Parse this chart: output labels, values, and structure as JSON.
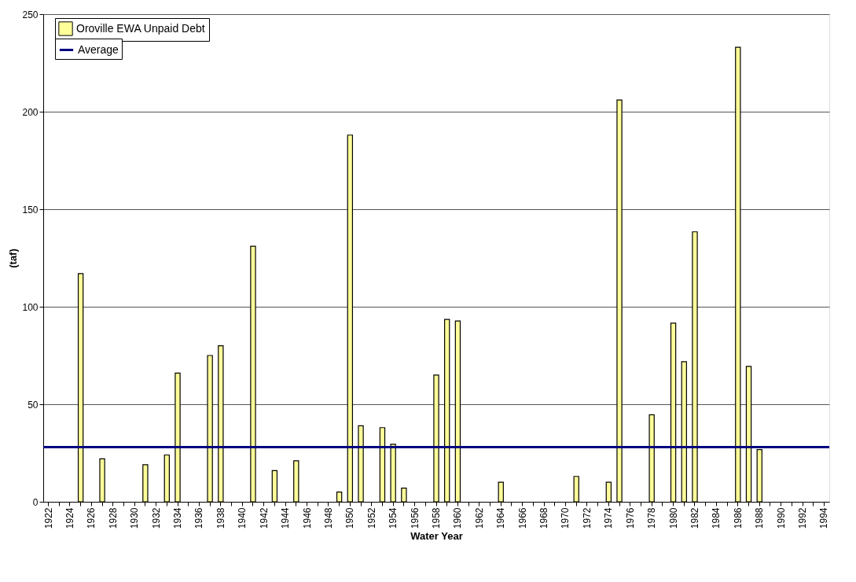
{
  "chart_data": {
    "type": "bar",
    "xlabel": "Water Year",
    "ylabel": "(taf)",
    "categories": [
      "1922",
      null,
      "1924",
      null,
      "1926",
      null,
      "1928",
      null,
      "1930",
      null,
      "1932",
      null,
      "1934",
      null,
      "1936",
      null,
      "1938",
      null,
      "1940",
      null,
      "1942",
      null,
      "1944",
      null,
      "1946",
      null,
      "1948",
      null,
      "1950",
      null,
      "1952",
      null,
      "1954",
      null,
      "1956",
      null,
      "1958",
      null,
      "1960",
      null,
      "1962",
      null,
      "1964",
      null,
      "1966",
      null,
      "1968",
      null,
      "1970",
      null,
      "1972",
      null,
      "1974",
      null,
      "1976",
      null,
      "1978",
      null,
      "1980",
      null,
      "1982",
      null,
      "1984",
      null,
      "1986",
      null,
      "1988",
      null,
      "1990",
      null,
      "1992",
      null,
      "1994"
    ],
    "series": [
      {
        "name": "Oroville EWA Unpaid Debt",
        "color": "#ffff99",
        "values": [
          0,
          0,
          0,
          117,
          0,
          22,
          0,
          0,
          0,
          19,
          0,
          24,
          66,
          0,
          0,
          75,
          80,
          0,
          0,
          131,
          0,
          16,
          0,
          21,
          0,
          0,
          0,
          5,
          188,
          39,
          0,
          38,
          29.5,
          7,
          0,
          0,
          65,
          93.5,
          92.7,
          0,
          0,
          0,
          10,
          0,
          0,
          0,
          0,
          0,
          0,
          13,
          0,
          0,
          10,
          206,
          0,
          0,
          44.6,
          0,
          91.6,
          71.8,
          138.4,
          0,
          0,
          0,
          233,
          69.4,
          26.8,
          0,
          0,
          0,
          0,
          0,
          0
        ]
      }
    ],
    "ref_lines": [
      {
        "axis": "y",
        "value": 28,
        "label": "Average",
        "color": "#000080"
      }
    ],
    "ylim": [
      0,
      250
    ],
    "yticks": [
      0,
      50,
      100,
      150,
      200,
      250
    ],
    "grid": "y",
    "legend": "top left"
  }
}
